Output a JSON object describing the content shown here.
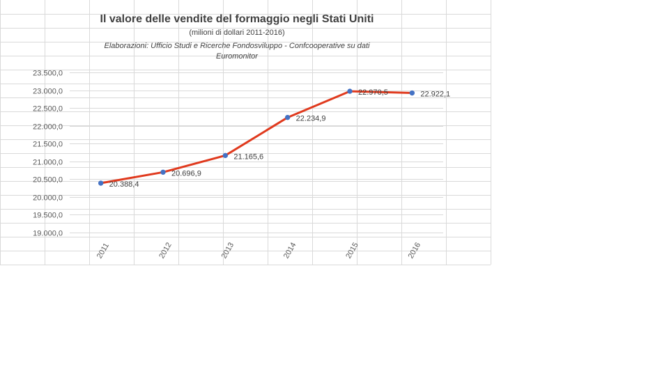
{
  "chart_data": {
    "type": "line",
    "title": "Il valore delle vendite del formaggio negli Stati Uniti",
    "subtitle": "(milioni di dollari 2011-2016)",
    "credit_line1": "Elaborazioni: Ufficio Studi e Ricerche  Fondosviluppo - Confcooperative su dati",
    "credit_line2": "Euromonitor",
    "categories": [
      "2011",
      "2012",
      "2013",
      "2014",
      "2015",
      "2016"
    ],
    "values": [
      20388.4,
      20696.9,
      21165.6,
      22234.9,
      22970.5,
      22922.1
    ],
    "data_labels": [
      "20.388,4",
      "20.696,9",
      "21.165,6",
      "22.234,9",
      "22.970,5",
      "22.922,1"
    ],
    "y_tick_values": [
      19000,
      19500,
      20000,
      20500,
      21000,
      21500,
      22000,
      22500,
      23000,
      23500
    ],
    "y_tick_labels": [
      "19.000,0",
      "19.500,0",
      "20.000,0",
      "20.500,0",
      "21.000,0",
      "21.500,0",
      "22.000,0",
      "22.500,0",
      "23.000,0",
      "23.500,0"
    ],
    "ylim": [
      19000,
      23500
    ],
    "grid": true,
    "legend": "none",
    "line_color": "#E03A1E",
    "marker_color": "#4472C4"
  }
}
